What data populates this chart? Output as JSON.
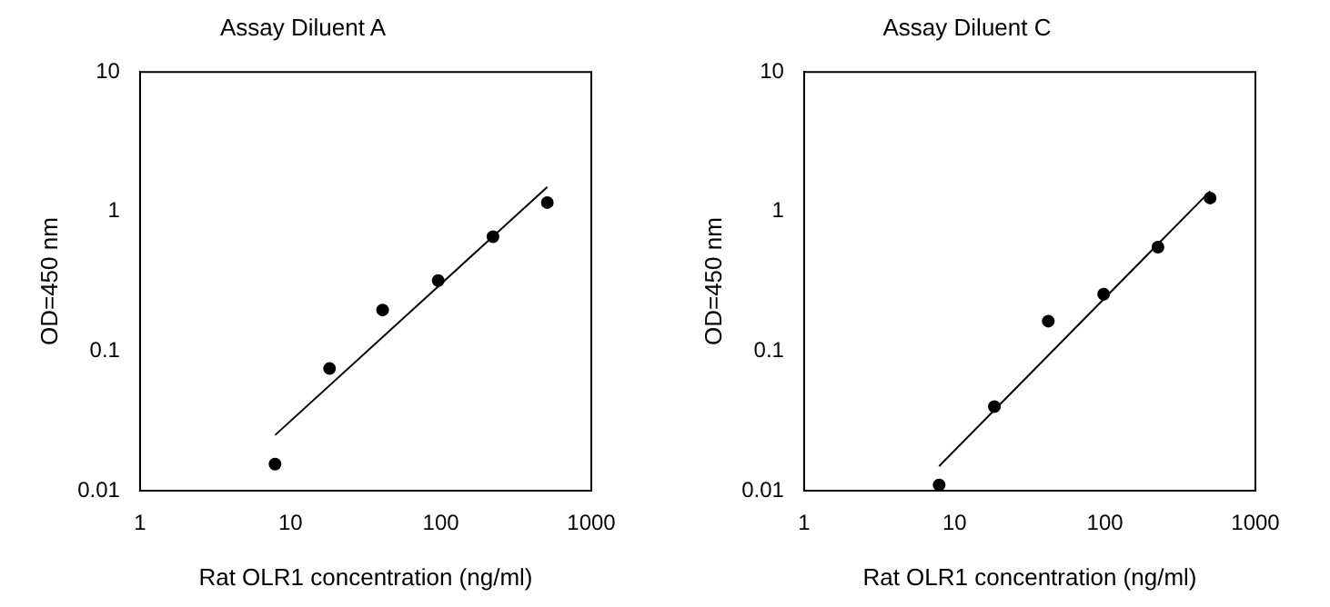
{
  "chart_data": [
    {
      "type": "scatter",
      "title": "Assay Diluent A",
      "xlabel": "Rat OLR1 concentration (ng/ml)",
      "ylabel": "OD=450 nm",
      "log": "xy",
      "grid": false,
      "legend": false,
      "marker": "circle",
      "xlim": [
        1,
        1000
      ],
      "xticks": [
        1,
        10,
        100,
        1000
      ],
      "ylim": [
        0.01,
        10
      ],
      "yticks": [
        0.01,
        0.1,
        1,
        10
      ],
      "series": [
        {
          "color": "#000000",
          "x": [
            7.9,
            18.2,
            41,
            96,
            222,
            510
          ],
          "values": [
            0.0155,
            0.075,
            0.197,
            0.32,
            0.66,
            1.16
          ]
        },
        {
          "type": "line",
          "color": "#000000",
          "marker": "none",
          "x": [
            7.9,
            510
          ],
          "values": [
            0.025,
            1.5
          ]
        }
      ]
    },
    {
      "type": "scatter",
      "title": "Assay Diluent C",
      "xlabel": "Rat OLR1 concentration (ng/ml)",
      "ylabel": "OD=450 nm",
      "log": "xy",
      "grid": false,
      "legend": false,
      "marker": "circle",
      "xlim": [
        1,
        1000
      ],
      "xticks": [
        1,
        10,
        100,
        1000
      ],
      "ylim": [
        0.01,
        10
      ],
      "yticks": [
        0.01,
        0.1,
        1,
        10
      ],
      "series": [
        {
          "color": "#000000",
          "x": [
            7.9,
            18.4,
            42,
            98,
            225,
            500
          ],
          "values": [
            0.011,
            0.04,
            0.164,
            0.256,
            0.556,
            1.25
          ]
        },
        {
          "type": "line",
          "color": "#000000",
          "marker": "none",
          "x": [
            7.9,
            500
          ],
          "values": [
            0.015,
            1.4
          ]
        }
      ]
    }
  ]
}
